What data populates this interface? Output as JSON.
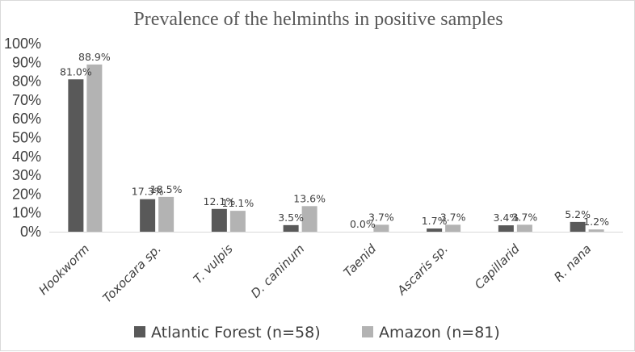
{
  "chart_data": {
    "type": "bar",
    "title": "Prevalence of the helminths in positive samples",
    "xlabel": "",
    "ylabel": "",
    "categories": [
      "Hookworm",
      "Toxocara sp.",
      "T. vulpis",
      "D. caninum",
      "Taenid",
      "Ascaris sp.",
      "Capillarid",
      "R. nana"
    ],
    "series": [
      {
        "name": "Atlantic Forest (n=58)",
        "color": "#595959",
        "values": [
          81.0,
          17.3,
          12.1,
          3.5,
          0.0,
          1.7,
          3.4,
          5.2
        ],
        "labels": [
          "81.0%",
          "17.3%",
          "12.1%",
          "3.5%",
          "0.0%",
          "1.7%",
          "3.4%",
          "5.2%"
        ]
      },
      {
        "name": "Amazon (n=81)",
        "color": "#b3b3b3",
        "values": [
          88.9,
          18.5,
          11.1,
          13.6,
          3.7,
          3.7,
          3.7,
          1.2
        ],
        "labels": [
          "88.9%",
          "18.5%",
          "11.1%",
          "13.6%",
          "3.7%",
          "3.7%",
          "3.7%",
          "1.2%"
        ]
      }
    ],
    "ylim": [
      0,
      100
    ],
    "yticks": [
      0,
      10,
      20,
      30,
      40,
      50,
      60,
      70,
      80,
      90,
      100
    ],
    "ytick_labels": [
      "0%",
      "10%",
      "20%",
      "30%",
      "40%",
      "50%",
      "60%",
      "70%",
      "80%",
      "90%",
      "100%"
    ],
    "grid": false,
    "legend_position": "bottom"
  }
}
